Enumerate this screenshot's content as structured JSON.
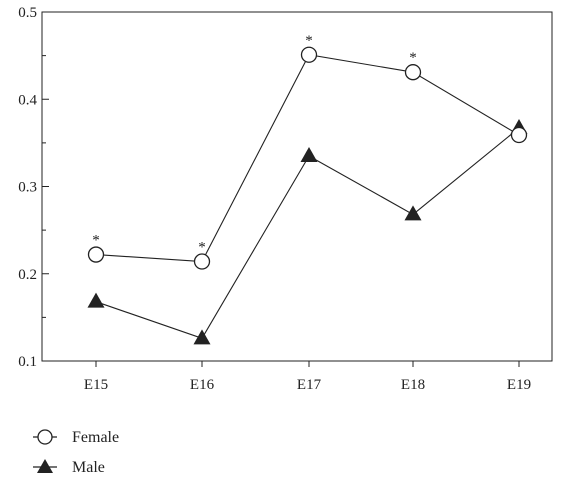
{
  "chart_data": {
    "type": "line",
    "title": "",
    "xlabel": "",
    "ylabel": "",
    "categories": [
      "E15",
      "E16",
      "E17",
      "E18",
      "E19"
    ],
    "ylim": [
      0.1,
      0.5
    ],
    "yticks": [
      "0.1",
      "0.2",
      "0.3",
      "0.4",
      "0.5"
    ],
    "grid": false,
    "legend_position": "bottom-left",
    "series": [
      {
        "name": "Female",
        "values": [
          0.222,
          0.214,
          0.451,
          0.431,
          0.359
        ],
        "marker": "open-circle",
        "significance": [
          "*",
          "*",
          "*",
          "*",
          ""
        ]
      },
      {
        "name": "Male",
        "values": [
          0.168,
          0.126,
          0.335,
          0.268,
          0.367
        ],
        "marker": "filled-triangle"
      }
    ],
    "colors": {
      "line": "#222222",
      "marker_fill_male": "#222222",
      "marker_fill_female": "#ffffff"
    }
  }
}
